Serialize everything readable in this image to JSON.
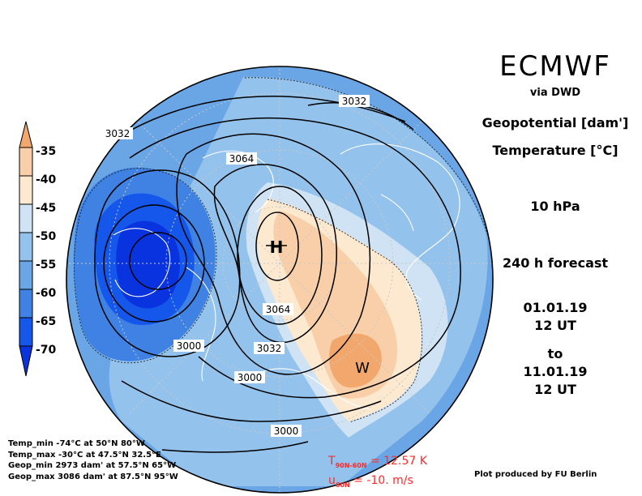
{
  "header": {
    "model": "ECMWF",
    "via": "via DWD",
    "var1": "Geopotential [dam']",
    "var2": "Temperature [°C]",
    "level": "10 hPa",
    "forecast": "240 h forecast",
    "date1": "01.01.19",
    "time1": "12 UT",
    "to": "to",
    "date2": "11.01.19",
    "time2": "12 UT"
  },
  "colorbar": {
    "labels": [
      "-35",
      "-40",
      "-45",
      "-50",
      "-55",
      "-60",
      "-65",
      "-70"
    ],
    "colors": [
      "#f2a86c",
      "#f8cfa8",
      "#fde9cf",
      "#cfe3f5",
      "#93c2ec",
      "#6aa6e6",
      "#3f82e4",
      "#1457ea",
      "#0a33e0"
    ]
  },
  "contours": {
    "labels": [
      "3032",
      "3032",
      "3064",
      "3064",
      "3000",
      "3032",
      "3000",
      "3000"
    ],
    "high_marker": "H",
    "warm_marker": "W"
  },
  "stats": [
    "Temp_min -74°C at 50°N 80°W",
    "Temp_max -30°C at 47.5°N 32.5°E",
    "Geop_min 2973 dam' at 57.5°N 65°W",
    "Geop_max 3086 dam' at 87.5°N 95°W"
  ],
  "indices": {
    "t_line_prefix": "T",
    "t_line_sub": "90N-60N",
    "t_line_value": "= 12.57 K",
    "u_line_prefix": "u",
    "u_line_sub": "60N",
    "u_line_value": "= -10. m/s",
    "color": "#ff2a2a"
  },
  "credit": "Plot produced by FU Berlin"
}
